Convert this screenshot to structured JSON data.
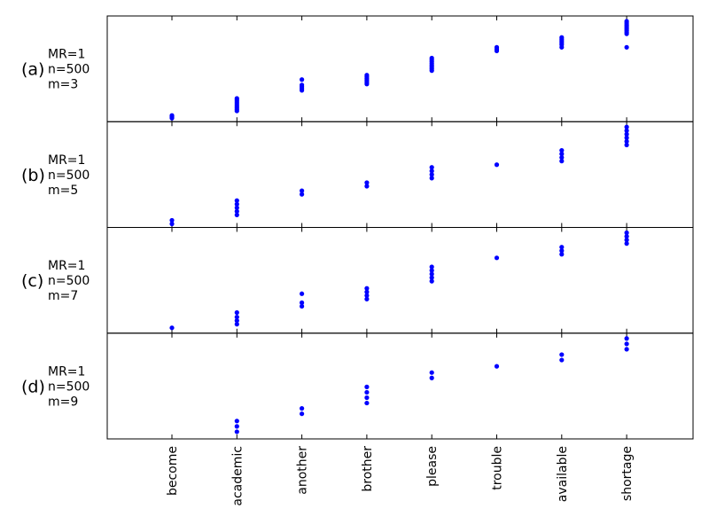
{
  "chart_data": {
    "type": "scatter",
    "categories": [
      "become",
      "academic",
      "another",
      "brother",
      "please",
      "trouble",
      "available",
      "shortage"
    ],
    "marker_color": "#0000ff",
    "grid": false,
    "panels": [
      {
        "tag": "(a)",
        "params": [
          "MR=1",
          "n=500",
          "m=3"
        ],
        "points": [
          [
            0,
            2
          ],
          [
            0,
            3
          ],
          [
            0,
            4
          ],
          [
            0,
            5
          ],
          [
            1,
            10
          ],
          [
            1,
            12
          ],
          [
            1,
            14
          ],
          [
            1,
            16
          ],
          [
            1,
            18
          ],
          [
            1,
            20
          ],
          [
            1,
            22
          ],
          [
            1,
            24
          ],
          [
            2,
            33
          ],
          [
            2,
            35
          ],
          [
            2,
            37
          ],
          [
            2,
            39
          ],
          [
            2,
            45
          ],
          [
            3,
            40
          ],
          [
            3,
            42
          ],
          [
            3,
            44
          ],
          [
            3,
            46
          ],
          [
            3,
            48
          ],
          [
            3,
            50
          ],
          [
            4,
            55
          ],
          [
            4,
            57
          ],
          [
            4,
            59
          ],
          [
            4,
            61
          ],
          [
            4,
            63
          ],
          [
            4,
            65
          ],
          [
            4,
            67
          ],
          [
            4,
            69
          ],
          [
            5,
            77
          ],
          [
            5,
            79
          ],
          [
            5,
            81
          ],
          [
            6,
            81
          ],
          [
            6,
            84
          ],
          [
            6,
            86
          ],
          [
            6,
            88
          ],
          [
            6,
            90
          ],
          [
            6,
            92
          ],
          [
            7,
            81
          ],
          [
            7,
            96
          ],
          [
            7,
            98
          ],
          [
            7,
            100
          ],
          [
            7,
            102
          ],
          [
            7,
            104
          ],
          [
            7,
            106
          ],
          [
            7,
            108
          ],
          [
            7,
            110
          ]
        ]
      },
      {
        "tag": "(b)",
        "params": [
          "MR=1",
          "n=500",
          "m=5"
        ],
        "points": [
          [
            0,
            2
          ],
          [
            0,
            6
          ],
          [
            1,
            12
          ],
          [
            1,
            16
          ],
          [
            1,
            20
          ],
          [
            1,
            24
          ],
          [
            1,
            28
          ],
          [
            2,
            35
          ],
          [
            2,
            39
          ],
          [
            3,
            44
          ],
          [
            3,
            48
          ],
          [
            4,
            53
          ],
          [
            4,
            57
          ],
          [
            4,
            61
          ],
          [
            4,
            65
          ],
          [
            5,
            68
          ],
          [
            6,
            72
          ],
          [
            6,
            76
          ],
          [
            6,
            80
          ],
          [
            6,
            84
          ],
          [
            7,
            90
          ],
          [
            7,
            94
          ],
          [
            7,
            98
          ],
          [
            7,
            102
          ],
          [
            7,
            106
          ],
          [
            7,
            110
          ]
        ]
      },
      {
        "tag": "(c)",
        "params": [
          "MR=1",
          "n=500",
          "m=7"
        ],
        "points": [
          [
            0,
            4
          ],
          [
            1,
            8
          ],
          [
            1,
            12
          ],
          [
            1,
            16
          ],
          [
            1,
            21
          ],
          [
            2,
            28
          ],
          [
            2,
            32
          ],
          [
            2,
            42
          ],
          [
            3,
            36
          ],
          [
            3,
            40
          ],
          [
            3,
            44
          ],
          [
            3,
            48
          ],
          [
            4,
            56
          ],
          [
            4,
            60
          ],
          [
            4,
            64
          ],
          [
            4,
            68
          ],
          [
            4,
            72
          ],
          [
            5,
            82
          ],
          [
            6,
            86
          ],
          [
            6,
            90
          ],
          [
            6,
            94
          ],
          [
            7,
            98
          ],
          [
            7,
            102
          ],
          [
            7,
            106
          ],
          [
            7,
            110
          ]
        ]
      },
      {
        "tag": "(d)",
        "params": [
          "MR=1",
          "n=500",
          "m=9"
        ],
        "points": [
          [
            1,
            6
          ],
          [
            1,
            12
          ],
          [
            1,
            18
          ],
          [
            2,
            26
          ],
          [
            2,
            32
          ],
          [
            3,
            38
          ],
          [
            3,
            44
          ],
          [
            3,
            50
          ],
          [
            3,
            56
          ],
          [
            4,
            66
          ],
          [
            4,
            72
          ],
          [
            5,
            79
          ],
          [
            6,
            86
          ],
          [
            6,
            92
          ],
          [
            7,
            98
          ],
          [
            7,
            104
          ],
          [
            7,
            110
          ]
        ]
      }
    ]
  }
}
